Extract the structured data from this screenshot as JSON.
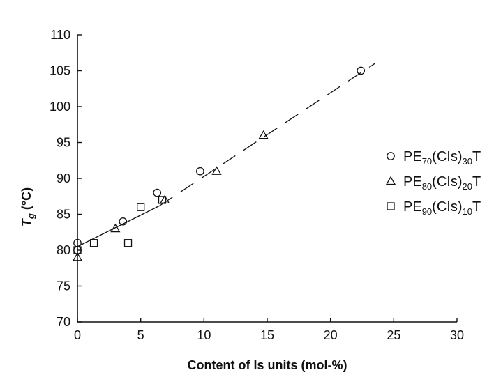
{
  "chart_data": {
    "type": "scatter",
    "xlabel": "Content of Is units (mol-%)",
    "ylabel_main": "T",
    "ylabel_sub": "g",
    "ylabel_unit": " (°C)",
    "xlim": [
      0,
      30
    ],
    "ylim": [
      70,
      110
    ],
    "x_ticks": [
      0,
      5,
      10,
      15,
      20,
      25,
      30
    ],
    "y_ticks": [
      70,
      75,
      80,
      85,
      90,
      95,
      100,
      105,
      110
    ],
    "grid": false,
    "legend_position": "right",
    "series": [
      {
        "marker": "circle",
        "legend_parts": [
          "PE",
          "70",
          "(CIs)",
          "30",
          "T"
        ],
        "points": [
          [
            0,
            81
          ],
          [
            0,
            80
          ],
          [
            3.6,
            84
          ],
          [
            6.3,
            88
          ],
          [
            9.7,
            91
          ],
          [
            22.4,
            105
          ]
        ]
      },
      {
        "marker": "triangle",
        "legend_parts": [
          "PE",
          "80",
          "(CIs)",
          "20",
          "T"
        ],
        "points": [
          [
            0,
            79
          ],
          [
            3.0,
            83
          ],
          [
            6.9,
            87
          ],
          [
            11.0,
            91
          ],
          [
            14.7,
            96
          ]
        ]
      },
      {
        "marker": "square",
        "legend_parts": [
          "PE",
          "90",
          "(CIs)",
          "10",
          "T"
        ],
        "points": [
          [
            0,
            80
          ],
          [
            1.3,
            81
          ],
          [
            4.0,
            81
          ],
          [
            5.0,
            86
          ],
          [
            6.7,
            87
          ]
        ]
      }
    ],
    "fit_solid": [
      [
        0,
        80.5
      ],
      [
        6.5,
        86.2
      ]
    ],
    "fit_dashed": [
      [
        6.5,
        86.2
      ],
      [
        23.5,
        106
      ]
    ]
  }
}
